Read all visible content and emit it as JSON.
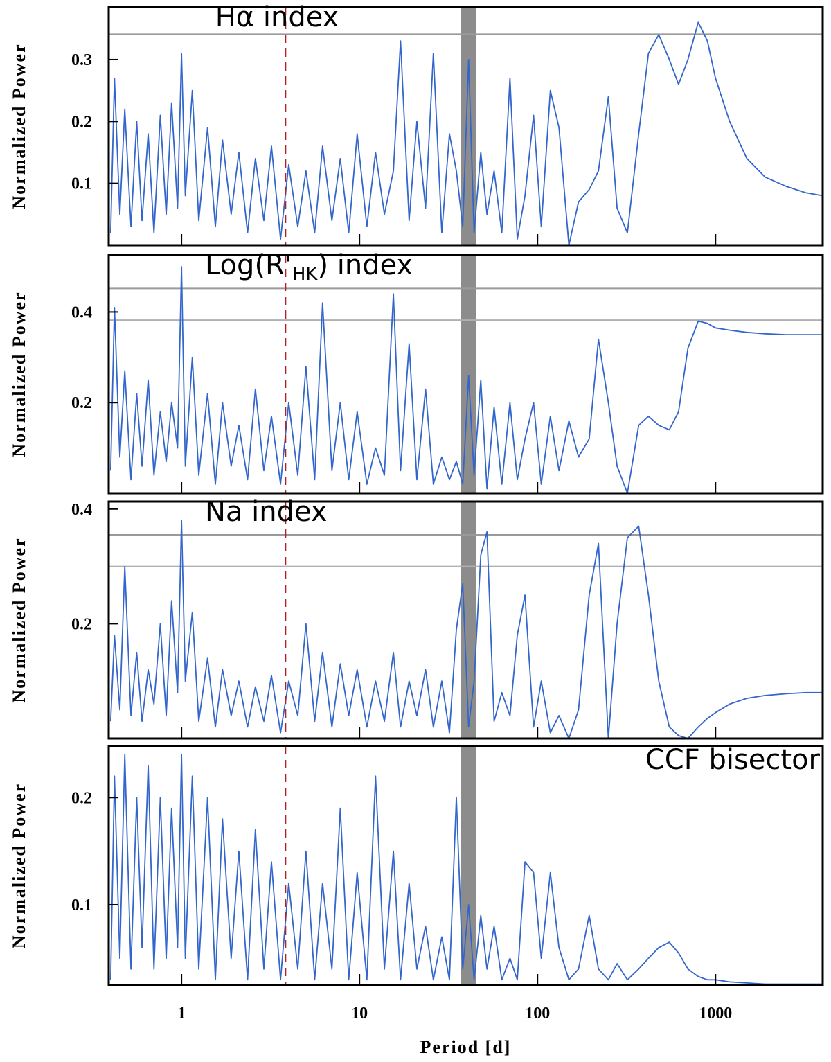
{
  "chart_data": [
    {
      "type": "line",
      "annotation": [
        "Hα index"
      ],
      "ylabel": "Normalized Power",
      "xscale": "log",
      "xlim": [
        0.39,
        4000
      ],
      "xticks": [
        1,
        10,
        100,
        1000
      ],
      "ylim": [
        0,
        0.385
      ],
      "yticks": [
        0.1,
        0.2,
        0.3
      ],
      "hlines": [
        0.341
      ],
      "vline": 3.84,
      "vspan": [
        37,
        45
      ],
      "series": [
        {
          "color": "#3366cc",
          "x": [
            0.4,
            0.42,
            0.45,
            0.48,
            0.52,
            0.56,
            0.6,
            0.65,
            0.7,
            0.76,
            0.82,
            0.88,
            0.95,
            1.0,
            1.05,
            1.15,
            1.25,
            1.4,
            1.55,
            1.7,
            1.9,
            2.1,
            2.35,
            2.6,
            2.9,
            3.2,
            3.6,
            4.0,
            4.5,
            5,
            5.6,
            6.2,
            7,
            7.8,
            8.7,
            9.7,
            11,
            12.3,
            13.8,
            15.5,
            17,
            19,
            21,
            23.5,
            26,
            29,
            32,
            35,
            38,
            41,
            44,
            48,
            52,
            57,
            63,
            70,
            77,
            85,
            95,
            105,
            118,
            132,
            150,
            170,
            195,
            220,
            250,
            280,
            320,
            370,
            420,
            480,
            550,
            620,
            700,
            800,
            900,
            1000,
            1200,
            1500,
            1900,
            2500,
            3200,
            4000
          ],
          "values": [
            0.02,
            0.27,
            0.05,
            0.22,
            0.03,
            0.2,
            0.04,
            0.18,
            0.02,
            0.21,
            0.05,
            0.23,
            0.06,
            0.31,
            0.08,
            0.25,
            0.04,
            0.19,
            0.03,
            0.17,
            0.05,
            0.15,
            0.02,
            0.14,
            0.04,
            0.16,
            0.01,
            0.13,
            0.03,
            0.12,
            0.02,
            0.16,
            0.04,
            0.14,
            0.02,
            0.18,
            0.03,
            0.15,
            0.05,
            0.12,
            0.33,
            0.04,
            0.2,
            0.06,
            0.31,
            0.02,
            0.18,
            0.12,
            0.03,
            0.3,
            0.02,
            0.15,
            0.05,
            0.12,
            0.02,
            0.27,
            0.01,
            0.08,
            0.21,
            0.03,
            0.25,
            0.19,
            0.0,
            0.07,
            0.09,
            0.12,
            0.24,
            0.06,
            0.02,
            0.18,
            0.31,
            0.34,
            0.3,
            0.26,
            0.3,
            0.36,
            0.33,
            0.27,
            0.2,
            0.14,
            0.11,
            0.095,
            0.085,
            0.08
          ]
        }
      ]
    },
    {
      "type": "line",
      "annotation": [
        "Log(R'",
        "HK",
        ") index"
      ],
      "ylabel": "Normalized Power",
      "xscale": "log",
      "xlim": [
        0.39,
        4000
      ],
      "xticks": [
        1,
        10,
        100,
        1000
      ],
      "ylim": [
        0,
        0.526
      ],
      "yticks": [
        0.2,
        0.4
      ],
      "hlines": [
        0.452,
        0.382
      ],
      "vline": 3.84,
      "vspan": [
        37,
        45
      ],
      "series": [
        {
          "color": "#3366cc",
          "x": [
            0.4,
            0.42,
            0.45,
            0.48,
            0.52,
            0.56,
            0.6,
            0.65,
            0.7,
            0.76,
            0.82,
            0.88,
            0.95,
            1.0,
            1.05,
            1.15,
            1.25,
            1.4,
            1.55,
            1.7,
            1.9,
            2.1,
            2.35,
            2.6,
            2.9,
            3.2,
            3.6,
            4.0,
            4.5,
            5,
            5.6,
            6.2,
            7,
            7.8,
            8.7,
            9.7,
            11,
            12.3,
            13.8,
            15.5,
            17,
            19,
            21,
            23.5,
            26,
            29,
            32,
            35,
            38,
            41,
            44,
            48,
            52,
            57,
            63,
            70,
            77,
            85,
            95,
            105,
            118,
            132,
            150,
            170,
            195,
            220,
            250,
            280,
            320,
            370,
            420,
            480,
            550,
            620,
            700,
            800,
            900,
            1000,
            1200,
            1500,
            1900,
            2500,
            3200,
            4000
          ],
          "values": [
            0.05,
            0.41,
            0.08,
            0.27,
            0.03,
            0.22,
            0.06,
            0.25,
            0.04,
            0.18,
            0.07,
            0.2,
            0.1,
            0.5,
            0.06,
            0.3,
            0.04,
            0.22,
            0.02,
            0.2,
            0.06,
            0.15,
            0.03,
            0.23,
            0.05,
            0.17,
            0.02,
            0.2,
            0.04,
            0.28,
            0.03,
            0.42,
            0.05,
            0.2,
            0.03,
            0.18,
            0.02,
            0.1,
            0.04,
            0.44,
            0.05,
            0.33,
            0.03,
            0.23,
            0.02,
            0.08,
            0.03,
            0.07,
            0.02,
            0.26,
            0.04,
            0.25,
            0.01,
            0.19,
            0.02,
            0.2,
            0.03,
            0.12,
            0.2,
            0.02,
            0.17,
            0.05,
            0.16,
            0.08,
            0.12,
            0.34,
            0.2,
            0.06,
            0.0,
            0.15,
            0.17,
            0.15,
            0.14,
            0.18,
            0.32,
            0.38,
            0.375,
            0.365,
            0.36,
            0.355,
            0.352,
            0.35,
            0.35,
            0.35
          ]
        }
      ]
    },
    {
      "type": "line",
      "annotation": [
        "Na index"
      ],
      "ylabel": "Normalized Power",
      "xscale": "log",
      "xlim": [
        0.39,
        4000
      ],
      "xticks": [
        1,
        10,
        100,
        1000
      ],
      "ylim": [
        0,
        0.413
      ],
      "yticks": [
        0.2,
        0.4
      ],
      "hlines": [
        0.355,
        0.3
      ],
      "vline": 3.84,
      "vspan": [
        37,
        45
      ],
      "series": [
        {
          "color": "#3366cc",
          "x": [
            0.4,
            0.42,
            0.45,
            0.48,
            0.52,
            0.56,
            0.6,
            0.65,
            0.7,
            0.76,
            0.82,
            0.88,
            0.95,
            1.0,
            1.05,
            1.15,
            1.25,
            1.4,
            1.55,
            1.7,
            1.9,
            2.1,
            2.35,
            2.6,
            2.9,
            3.2,
            3.6,
            4.0,
            4.5,
            5,
            5.6,
            6.2,
            7,
            7.8,
            8.7,
            9.7,
            11,
            12.3,
            13.8,
            15.5,
            17,
            19,
            21,
            23.5,
            26,
            29,
            32,
            35,
            38,
            41,
            44,
            48,
            52,
            57,
            63,
            70,
            77,
            85,
            95,
            105,
            118,
            132,
            150,
            170,
            195,
            220,
            250,
            280,
            320,
            370,
            420,
            480,
            550,
            620,
            700,
            800,
            900,
            1000,
            1200,
            1500,
            1900,
            2500,
            3200,
            4000
          ],
          "values": [
            0.03,
            0.18,
            0.05,
            0.3,
            0.04,
            0.15,
            0.03,
            0.12,
            0.06,
            0.2,
            0.04,
            0.24,
            0.08,
            0.38,
            0.1,
            0.22,
            0.03,
            0.14,
            0.02,
            0.12,
            0.04,
            0.1,
            0.02,
            0.09,
            0.03,
            0.11,
            0.01,
            0.1,
            0.04,
            0.2,
            0.03,
            0.15,
            0.02,
            0.13,
            0.04,
            0.12,
            0.02,
            0.1,
            0.03,
            0.15,
            0.02,
            0.1,
            0.04,
            0.12,
            0.02,
            0.1,
            0.01,
            0.19,
            0.27,
            0.02,
            0.1,
            0.32,
            0.36,
            0.03,
            0.08,
            0.04,
            0.18,
            0.25,
            0.02,
            0.1,
            0.01,
            0.04,
            0.0,
            0.05,
            0.25,
            0.34,
            0.0,
            0.2,
            0.35,
            0.37,
            0.25,
            0.1,
            0.02,
            0.005,
            0.0,
            0.02,
            0.035,
            0.045,
            0.06,
            0.07,
            0.075,
            0.078,
            0.08,
            0.08
          ]
        }
      ]
    },
    {
      "type": "line",
      "annotation": [
        "CCF bisector"
      ],
      "ylabel": "Normalized Power",
      "xlabel": "Period [d]",
      "xscale": "log",
      "xlim": [
        0.39,
        4000
      ],
      "xticks": [
        1,
        10,
        100,
        1000
      ],
      "ylim": [
        0.025,
        0.248
      ],
      "yticks": [
        0.1,
        0.2
      ],
      "hlines": [],
      "vline": 3.84,
      "vspan": [
        37,
        45
      ],
      "series": [
        {
          "color": "#3366cc",
          "x": [
            0.4,
            0.42,
            0.45,
            0.48,
            0.52,
            0.56,
            0.6,
            0.65,
            0.7,
            0.76,
            0.82,
            0.88,
            0.95,
            1.0,
            1.05,
            1.15,
            1.25,
            1.4,
            1.55,
            1.7,
            1.9,
            2.1,
            2.35,
            2.6,
            2.9,
            3.2,
            3.6,
            4.0,
            4.5,
            5,
            5.6,
            6.2,
            7,
            7.8,
            8.7,
            9.7,
            11,
            12.3,
            13.8,
            15.5,
            17,
            19,
            21,
            23.5,
            26,
            29,
            32,
            35,
            38,
            41,
            44,
            48,
            52,
            57,
            63,
            70,
            77,
            85,
            95,
            105,
            118,
            132,
            150,
            170,
            195,
            220,
            250,
            280,
            320,
            370,
            420,
            480,
            550,
            620,
            700,
            800,
            900,
            1000,
            1200,
            1500,
            1900,
            2500,
            3200,
            4000
          ],
          "values": [
            0.03,
            0.22,
            0.05,
            0.24,
            0.04,
            0.2,
            0.06,
            0.23,
            0.04,
            0.2,
            0.05,
            0.19,
            0.06,
            0.24,
            0.05,
            0.22,
            0.04,
            0.2,
            0.03,
            0.18,
            0.05,
            0.15,
            0.03,
            0.17,
            0.04,
            0.14,
            0.03,
            0.12,
            0.04,
            0.15,
            0.03,
            0.12,
            0.04,
            0.19,
            0.03,
            0.13,
            0.03,
            0.22,
            0.04,
            0.15,
            0.03,
            0.12,
            0.04,
            0.08,
            0.03,
            0.07,
            0.03,
            0.2,
            0.04,
            0.1,
            0.03,
            0.09,
            0.04,
            0.08,
            0.03,
            0.05,
            0.03,
            0.14,
            0.13,
            0.05,
            0.13,
            0.06,
            0.03,
            0.04,
            0.09,
            0.04,
            0.03,
            0.045,
            0.03,
            0.04,
            0.05,
            0.06,
            0.065,
            0.055,
            0.04,
            0.033,
            0.03,
            0.03,
            0.028,
            0.027,
            0.026,
            0.026,
            0.026,
            0.026
          ]
        }
      ]
    }
  ]
}
